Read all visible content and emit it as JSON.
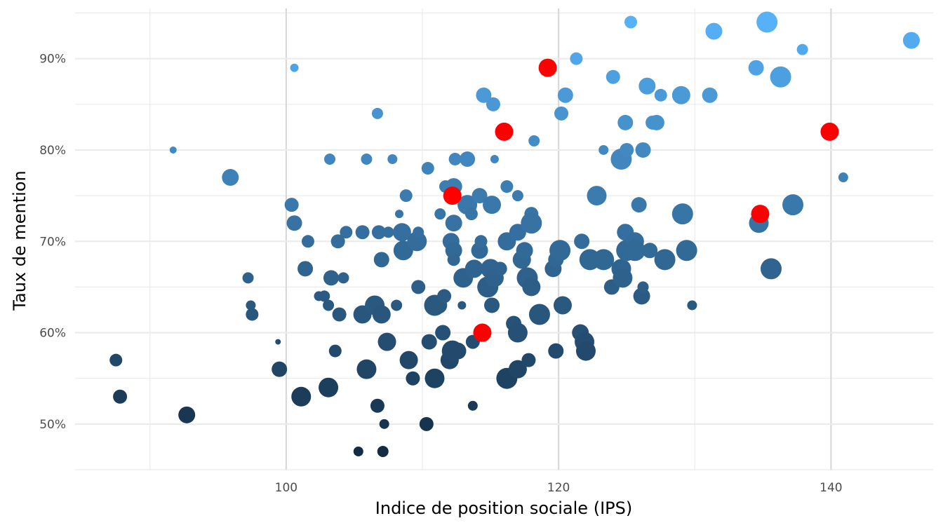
{
  "chart_data": {
    "type": "scatter",
    "xlabel": "Indice de position sociale (IPS)",
    "ylabel": "Taux de mention",
    "xlim": [
      84.5,
      147.5
    ],
    "ylim": [
      45,
      95.5
    ],
    "x_ticks": [
      100,
      120,
      140
    ],
    "x_tick_labels": [
      "100",
      "120",
      "140"
    ],
    "y_ticks": [
      50,
      60,
      70,
      80,
      90
    ],
    "y_tick_labels": [
      "50%",
      "60%",
      "70%",
      "80%",
      "90%"
    ],
    "x_minor_ticks": [
      90,
      110,
      130
    ],
    "y_minor_ticks": [
      55,
      65,
      75,
      85
    ],
    "grid": true,
    "legend": "none",
    "highlight_color": "#FF0000",
    "color_scale": {
      "low": "#132B43",
      "high": "#56B1F7",
      "variable": "Taux de mention"
    },
    "points": [
      [
        87.5,
        57,
        9
      ],
      [
        87.8,
        53,
        10
      ],
      [
        91.7,
        80,
        5
      ],
      [
        92.7,
        51,
        12
      ],
      [
        95.9,
        77,
        12
      ],
      [
        97.2,
        66,
        8
      ],
      [
        97.4,
        63,
        7
      ],
      [
        97.5,
        62,
        9
      ],
      [
        99.4,
        59,
        4
      ],
      [
        99.5,
        56,
        11
      ],
      [
        100.4,
        74,
        10
      ],
      [
        100.6,
        89,
        6
      ],
      [
        100.6,
        72,
        11
      ],
      [
        101.1,
        53,
        14
      ],
      [
        101.4,
        67,
        11
      ],
      [
        101.6,
        70,
        9
      ],
      [
        102.4,
        64,
        7
      ],
      [
        102.8,
        64,
        8
      ],
      [
        103.1,
        54,
        14
      ],
      [
        103.1,
        63,
        8
      ],
      [
        103.2,
        79,
        8
      ],
      [
        103.3,
        66,
        11
      ],
      [
        103.6,
        58,
        9
      ],
      [
        103.8,
        70,
        10
      ],
      [
        103.9,
        62,
        10
      ],
      [
        104.2,
        66,
        8
      ],
      [
        104.4,
        71,
        9
      ],
      [
        105.3,
        47,
        7
      ],
      [
        105.6,
        71,
        10
      ],
      [
        105.6,
        62,
        13
      ],
      [
        105.9,
        79,
        8
      ],
      [
        105.9,
        56,
        14
      ],
      [
        106.5,
        63,
        14
      ],
      [
        106.7,
        52,
        10
      ],
      [
        106.7,
        84,
        8
      ],
      [
        106.8,
        71,
        10
      ],
      [
        107.0,
        62,
        13
      ],
      [
        107.0,
        68,
        11
      ],
      [
        107.1,
        47,
        8
      ],
      [
        107.2,
        50,
        7
      ],
      [
        107.4,
        59,
        13
      ],
      [
        107.5,
        71,
        8
      ],
      [
        107.8,
        79,
        7
      ],
      [
        108.1,
        63,
        8
      ],
      [
        108.3,
        73,
        6
      ],
      [
        108.5,
        71,
        13
      ],
      [
        108.6,
        69,
        14
      ],
      [
        108.8,
        75,
        9
      ],
      [
        109.0,
        57,
        13
      ],
      [
        109.3,
        55,
        10
      ],
      [
        109.6,
        70,
        14
      ],
      [
        109.7,
        71,
        8
      ],
      [
        109.7,
        65,
        10
      ],
      [
        110.3,
        50,
        10
      ],
      [
        110.4,
        78,
        9
      ],
      [
        110.5,
        59,
        11
      ],
      [
        110.9,
        63,
        15
      ],
      [
        110.9,
        55,
        14
      ],
      [
        111.2,
        63,
        12
      ],
      [
        111.3,
        73,
        8
      ],
      [
        111.5,
        60,
        11
      ],
      [
        111.6,
        64,
        10
      ],
      [
        111.7,
        76,
        9
      ],
      [
        112.0,
        57,
        13
      ],
      [
        112.1,
        70,
        12
      ],
      [
        112.2,
        58,
        15
      ],
      [
        112.3,
        76,
        12
      ],
      [
        112.3,
        72,
        12
      ],
      [
        112.3,
        69,
        12
      ],
      [
        112.3,
        68,
        9
      ],
      [
        112.4,
        79,
        9
      ],
      [
        112.6,
        58,
        12
      ],
      [
        112.9,
        63,
        6
      ],
      [
        113.0,
        66,
        14
      ],
      [
        113.3,
        74,
        14
      ],
      [
        113.3,
        79,
        11
      ],
      [
        113.6,
        73,
        9
      ],
      [
        113.7,
        52,
        7
      ],
      [
        113.7,
        59,
        10
      ],
      [
        113.8,
        67,
        13
      ],
      [
        114.2,
        75,
        11
      ],
      [
        114.2,
        69,
        12
      ],
      [
        114.3,
        70,
        9
      ],
      [
        114.5,
        86,
        11
      ],
      [
        114.8,
        65,
        15
      ],
      [
        115.2,
        85,
        10
      ],
      [
        115.0,
        67,
        14
      ],
      [
        115.1,
        63,
        11
      ],
      [
        115.1,
        74,
        13
      ],
      [
        115.3,
        66,
        13
      ],
      [
        115.3,
        79,
        6
      ],
      [
        115.7,
        67,
        10
      ],
      [
        116.2,
        70,
        13
      ],
      [
        116.2,
        55,
        15
      ],
      [
        116.2,
        76,
        9
      ],
      [
        116.7,
        61,
        11
      ],
      [
        117.0,
        56,
        13
      ],
      [
        117.0,
        60,
        14
      ],
      [
        117.0,
        71,
        12
      ],
      [
        117.0,
        75,
        8
      ],
      [
        117.3,
        68,
        13
      ],
      [
        117.5,
        69,
        12
      ],
      [
        117.7,
        66,
        15
      ],
      [
        117.8,
        57,
        10
      ],
      [
        118.0,
        73,
        10
      ],
      [
        118.0,
        65,
        13
      ],
      [
        118.0,
        72,
        15
      ],
      [
        118.2,
        81,
        8
      ],
      [
        118.6,
        62,
        15
      ],
      [
        119.6,
        67,
        12
      ],
      [
        119.8,
        68,
        11
      ],
      [
        119.8,
        58,
        11
      ],
      [
        120.3,
        63,
        13
      ],
      [
        120.1,
        69,
        15
      ],
      [
        120.2,
        84,
        10
      ],
      [
        120.5,
        86,
        11
      ],
      [
        121.3,
        90,
        9
      ],
      [
        121.6,
        60,
        12
      ],
      [
        121.7,
        70,
        11
      ],
      [
        121.9,
        59,
        14
      ],
      [
        122.0,
        58,
        14
      ],
      [
        122.3,
        68,
        15
      ],
      [
        122.8,
        75,
        14
      ],
      [
        123.3,
        68,
        15
      ],
      [
        123.3,
        80,
        7
      ],
      [
        123.9,
        65,
        11
      ],
      [
        124.0,
        88,
        10
      ],
      [
        124.6,
        67,
        14
      ],
      [
        124.7,
        66,
        14
      ],
      [
        124.6,
        79,
        15
      ],
      [
        124.9,
        83,
        11
      ],
      [
        124.9,
        71,
        12
      ],
      [
        125.0,
        69,
        15
      ],
      [
        125.0,
        80,
        10
      ],
      [
        125.3,
        94,
        9
      ],
      [
        125.6,
        70,
        13
      ],
      [
        125.6,
        69,
        15
      ],
      [
        125.9,
        74,
        11
      ],
      [
        126.1,
        64,
        12
      ],
      [
        126.2,
        65,
        8
      ],
      [
        126.2,
        80,
        11
      ],
      [
        126.5,
        87,
        12
      ],
      [
        126.7,
        69,
        11
      ],
      [
        126.9,
        83,
        10
      ],
      [
        127.2,
        83,
        11
      ],
      [
        127.5,
        86,
        9
      ],
      [
        127.8,
        68,
        15
      ],
      [
        128.9,
        73,
        10
      ],
      [
        129.0,
        86,
        13
      ],
      [
        129.1,
        73,
        15
      ],
      [
        129.4,
        69,
        15
      ],
      [
        129.8,
        63,
        7
      ],
      [
        131.1,
        86,
        11
      ],
      [
        131.4,
        93,
        12
      ],
      [
        134.5,
        89,
        11
      ],
      [
        134.7,
        72,
        14
      ],
      [
        135.3,
        94,
        15
      ],
      [
        135.6,
        67,
        15
      ],
      [
        136.3,
        88,
        15
      ],
      [
        137.2,
        74,
        15
      ],
      [
        137.9,
        91,
        8
      ],
      [
        140.9,
        77,
        7
      ],
      [
        145.9,
        92,
        12
      ]
    ],
    "highlighted_points": [
      [
        112.2,
        75
      ],
      [
        114.4,
        60
      ],
      [
        116.0,
        82
      ],
      [
        119.2,
        89
      ],
      [
        134.8,
        73
      ],
      [
        139.9,
        82
      ]
    ]
  }
}
